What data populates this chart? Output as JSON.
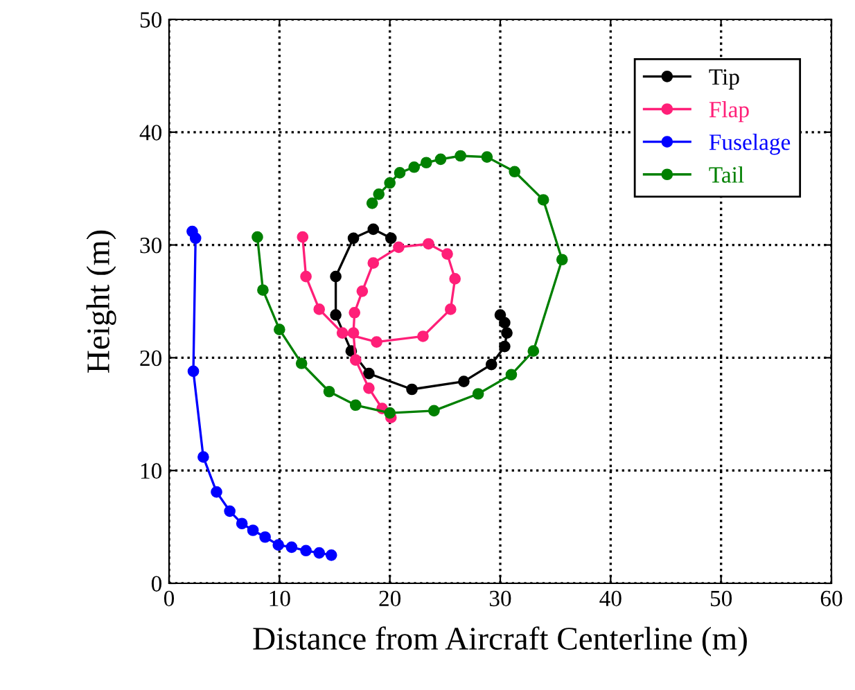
{
  "chart_data": {
    "type": "line",
    "xlabel": "Distance from Aircraft Centerline (m)",
    "ylabel": "Height (m)",
    "xlim": [
      0,
      60
    ],
    "ylim": [
      0,
      50
    ],
    "xticks": [
      0,
      10,
      20,
      30,
      40,
      50,
      60
    ],
    "yticks": [
      0,
      10,
      20,
      30,
      40,
      50
    ],
    "grid": true,
    "legend": "top right",
    "marker": "circle",
    "line_style": "solid",
    "series": [
      {
        "name": "Tip",
        "color": "#000000",
        "x": [
          20.1,
          18.5,
          16.7,
          15.1,
          15.1,
          16.5,
          18.1,
          22.0,
          26.7,
          29.2,
          30.4,
          30.6,
          30.4,
          30.0
        ],
        "values": [
          30.6,
          31.4,
          30.6,
          27.2,
          23.8,
          20.6,
          18.6,
          17.2,
          17.9,
          19.4,
          21.0,
          22.2,
          23.1,
          23.8
        ]
      },
      {
        "name": "Flap",
        "color": "#ff1f78",
        "x": [
          12.1,
          12.4,
          13.6,
          15.7,
          18.8,
          23.0,
          25.5,
          25.9,
          25.2,
          23.5,
          20.8,
          18.5,
          17.5,
          16.8,
          16.7,
          16.9,
          18.1,
          19.3,
          20.1
        ],
        "values": [
          30.7,
          27.2,
          24.3,
          22.2,
          21.4,
          21.9,
          24.3,
          27.0,
          29.2,
          30.1,
          29.8,
          28.4,
          25.9,
          24.0,
          22.2,
          19.8,
          17.3,
          15.5,
          14.7
        ]
      },
      {
        "name": "Fuselage",
        "color": "#0000ff",
        "x": [
          2.1,
          2.4,
          2.2,
          3.1,
          4.3,
          5.5,
          6.6,
          7.6,
          8.7,
          9.9,
          11.1,
          12.4,
          13.6,
          14.7
        ],
        "values": [
          31.2,
          30.6,
          18.8,
          11.2,
          8.1,
          6.4,
          5.3,
          4.7,
          4.1,
          3.4,
          3.2,
          2.9,
          2.7,
          2.5
        ]
      },
      {
        "name": "Tail",
        "color": "#008000",
        "x": [
          8.0,
          8.5,
          10.0,
          12.0,
          14.5,
          16.9,
          20.0,
          24.0,
          28.0,
          31.0,
          33.0,
          35.6,
          33.9,
          31.3,
          28.8,
          26.4,
          24.6,
          23.3,
          22.2,
          20.9,
          20.0,
          19.0,
          18.4
        ],
        "values": [
          30.7,
          26.0,
          22.5,
          19.5,
          17.0,
          15.8,
          15.1,
          15.3,
          16.8,
          18.5,
          20.6,
          28.7,
          34.0,
          36.5,
          37.8,
          37.9,
          37.6,
          37.3,
          36.9,
          36.4,
          35.5,
          34.5,
          33.7
        ]
      }
    ]
  }
}
